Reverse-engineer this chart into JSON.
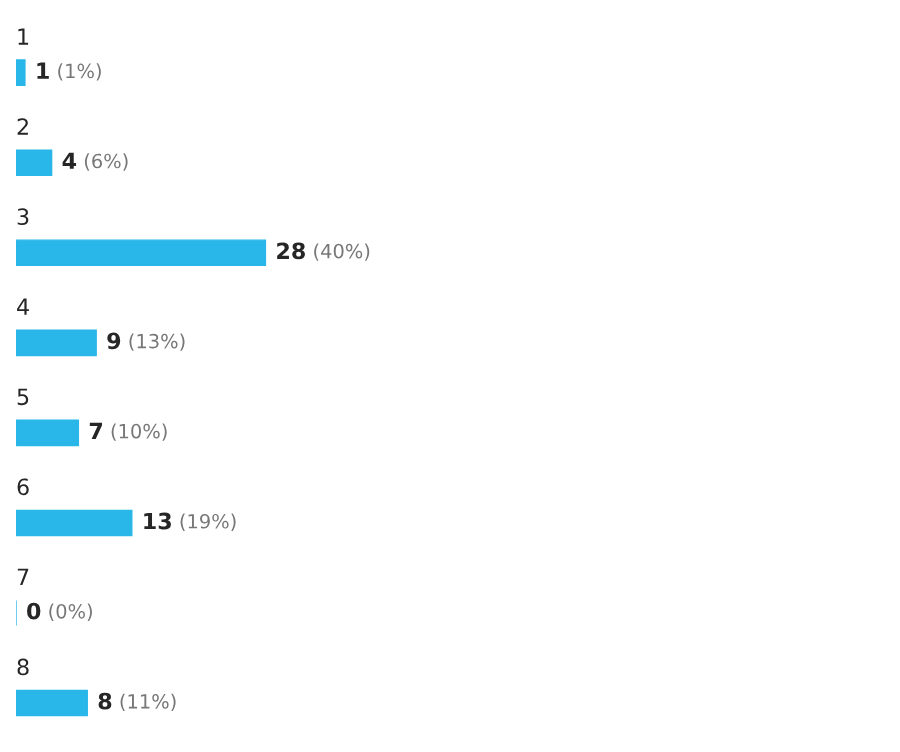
{
  "chart_data": {
    "type": "bar",
    "orientation": "horizontal",
    "categories": [
      "1",
      "2",
      "3",
      "4",
      "5",
      "6",
      "7",
      "8"
    ],
    "values": [
      1,
      4,
      28,
      9,
      7,
      13,
      0,
      8
    ],
    "value_labels": [
      "1 (1%)",
      "4 (6%)",
      "28 (40%)",
      "9 (13%)",
      "7 (10%)",
      "13 (19%)",
      "0 (0%)",
      "8 (11%)"
    ],
    "color": "#29b6e8"
  }
}
